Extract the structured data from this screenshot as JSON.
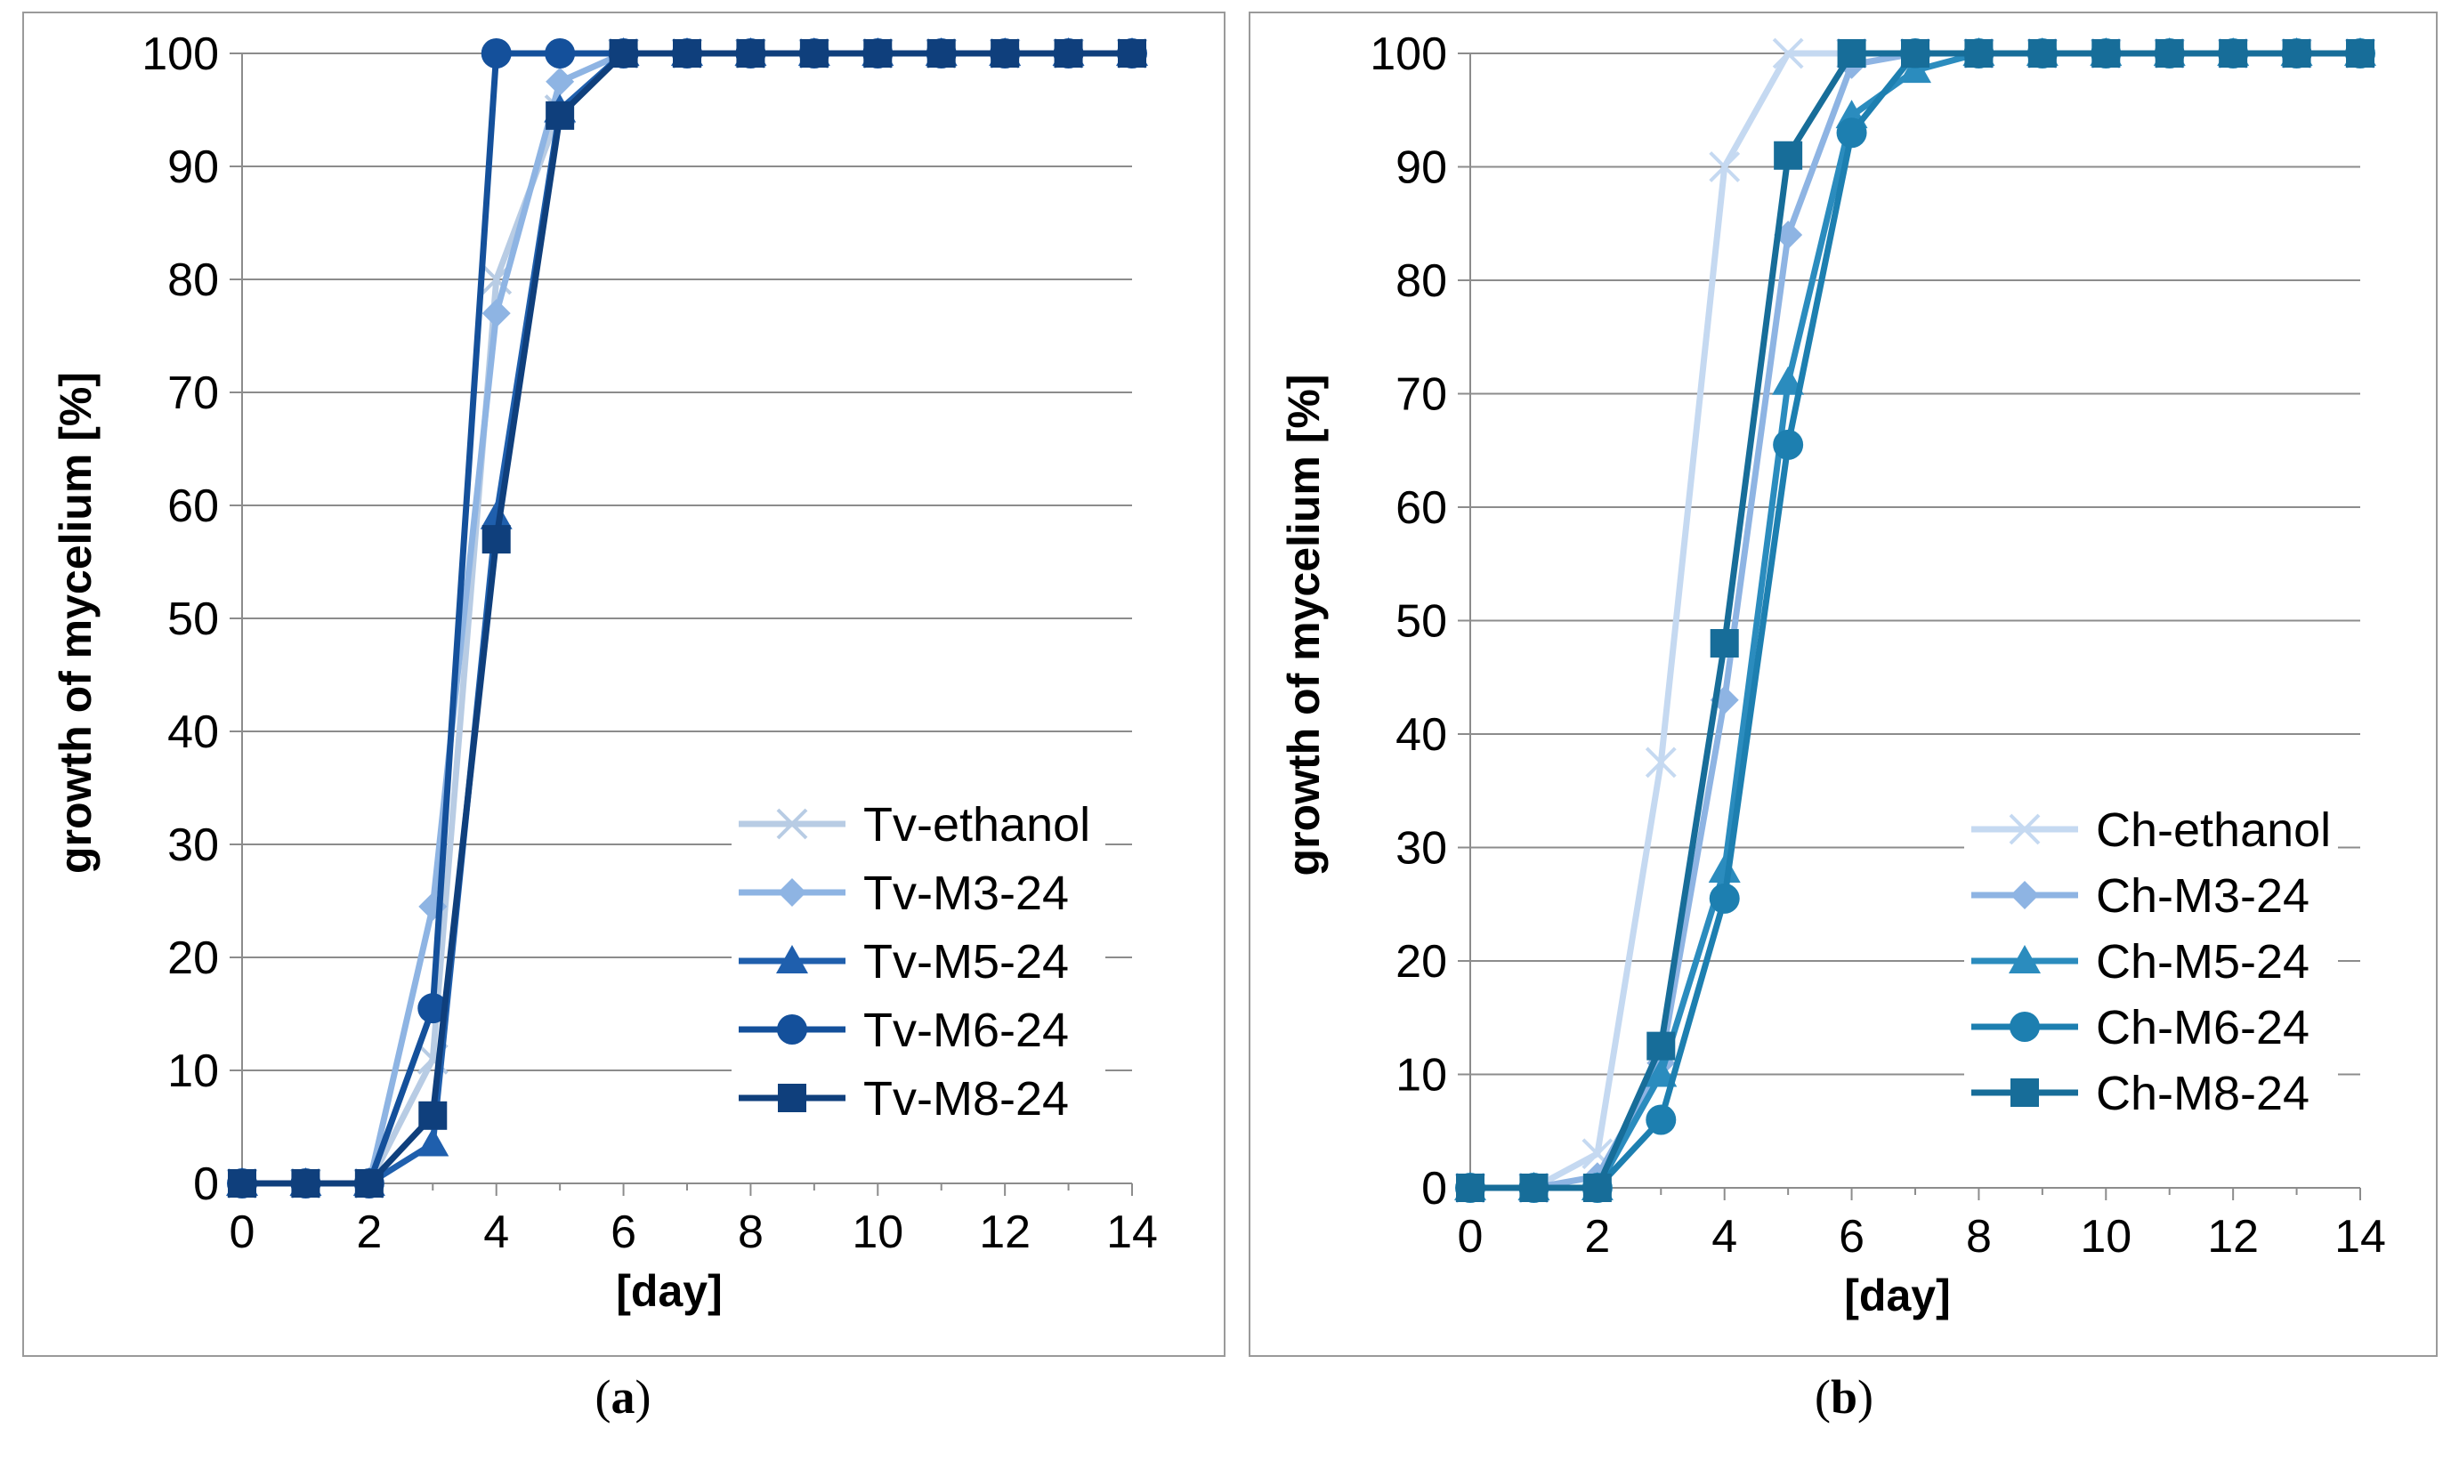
{
  "figure": {
    "panels": [
      {
        "caption_open": "(",
        "caption_letter": "a",
        "caption_close": ")"
      },
      {
        "caption_open": "(",
        "caption_letter": "b",
        "caption_close": ")"
      }
    ]
  },
  "chart_data": [
    {
      "type": "line",
      "title": "",
      "xlabel": "[day]",
      "ylabel": "growth of mycelium [%]",
      "xlim": [
        0,
        14
      ],
      "ylim": [
        0,
        100
      ],
      "xticks": [
        0,
        2,
        4,
        6,
        8,
        10,
        12,
        14
      ],
      "yticks": [
        0,
        10,
        20,
        30,
        40,
        50,
        60,
        70,
        80,
        90,
        100
      ],
      "grid": true,
      "legend_position": "bottom-right",
      "x": [
        0,
        1,
        2,
        3,
        4,
        5,
        6,
        7,
        8,
        9,
        10,
        11,
        12,
        13,
        14
      ],
      "series": [
        {
          "name": "Tv-ethanol",
          "marker": "x",
          "color": "#b8cce4",
          "values": [
            0,
            0,
            0,
            11,
            80,
            95,
            100,
            100,
            100,
            100,
            100,
            100,
            100,
            100,
            100
          ]
        },
        {
          "name": "Tv-M3-24",
          "marker": "diamond",
          "color": "#8eb4e3",
          "values": [
            0,
            0,
            0,
            24.5,
            77,
            97.5,
            100,
            100,
            100,
            100,
            100,
            100,
            100,
            100,
            100
          ]
        },
        {
          "name": "Tv-M5-24",
          "marker": "triangle",
          "color": "#1f5fad",
          "values": [
            0,
            0,
            0,
            3.5,
            59,
            95,
            100,
            100,
            100,
            100,
            100,
            100,
            100,
            100,
            100
          ]
        },
        {
          "name": "Tv-M6-24",
          "marker": "circle",
          "color": "#14509b",
          "values": [
            0,
            0,
            0,
            15.5,
            100,
            100,
            100,
            100,
            100,
            100,
            100,
            100,
            100,
            100,
            100
          ]
        },
        {
          "name": "Tv-M8-24",
          "marker": "square",
          "color": "#0f3f7c",
          "values": [
            0,
            0,
            0,
            6,
            57,
            94.5,
            100,
            100,
            100,
            100,
            100,
            100,
            100,
            100,
            100
          ]
        }
      ]
    },
    {
      "type": "line",
      "title": "",
      "xlabel": "[day]",
      "ylabel": "growth of mycelium [%]",
      "xlim": [
        0,
        14
      ],
      "ylim": [
        0,
        100
      ],
      "xticks": [
        0,
        2,
        4,
        6,
        8,
        10,
        12,
        14
      ],
      "yticks": [
        0,
        10,
        20,
        30,
        40,
        50,
        60,
        70,
        80,
        90,
        100
      ],
      "grid": true,
      "legend_position": "bottom-right",
      "x": [
        0,
        1,
        2,
        3,
        4,
        5,
        6,
        7,
        8,
        9,
        10,
        11,
        12,
        13,
        14
      ],
      "series": [
        {
          "name": "Ch-ethanol",
          "marker": "x",
          "color": "#c5d9f1",
          "values": [
            0,
            0,
            3,
            37.5,
            90,
            100,
            100,
            100,
            100,
            100,
            100,
            100,
            100,
            100,
            100
          ]
        },
        {
          "name": "Ch-M3-24",
          "marker": "diamond",
          "color": "#8eb4e3",
          "values": [
            0,
            0,
            1,
            11,
            43,
            84,
            99,
            100,
            100,
            100,
            100,
            100,
            100,
            100,
            100
          ]
        },
        {
          "name": "Ch-M5-24",
          "marker": "triangle",
          "color": "#2b8cbe",
          "values": [
            0,
            0,
            0,
            10,
            28,
            71,
            94.5,
            98.5,
            100,
            100,
            100,
            100,
            100,
            100,
            100
          ]
        },
        {
          "name": "Ch-M6-24",
          "marker": "circle",
          "color": "#1d7fb0",
          "values": [
            0,
            0,
            0,
            6,
            25.5,
            65.5,
            93,
            100,
            100,
            100,
            100,
            100,
            100,
            100,
            100
          ]
        },
        {
          "name": "Ch-M8-24",
          "marker": "square",
          "color": "#176d99",
          "values": [
            0,
            0,
            0,
            12.5,
            48,
            91,
            100,
            100,
            100,
            100,
            100,
            100,
            100,
            100,
            100
          ]
        }
      ]
    }
  ]
}
